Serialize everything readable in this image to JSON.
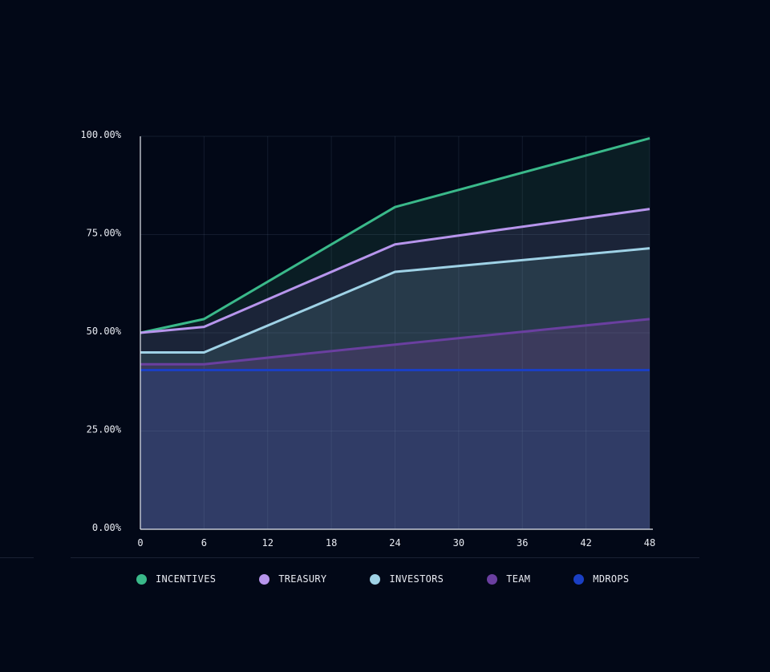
{
  "chart_data": {
    "type": "area",
    "x": [
      0,
      6,
      24,
      48
    ],
    "x_ticks": [
      "0",
      "6",
      "12",
      "18",
      "24",
      "30",
      "36",
      "42",
      "48"
    ],
    "y_ticks": [
      "0.00%",
      "25.00%",
      "50.00%",
      "75.00%",
      "100.00%"
    ],
    "xlim": [
      0,
      48
    ],
    "ylim": [
      0,
      100
    ],
    "grid": true,
    "legend_position": "bottom",
    "series": [
      {
        "name": "INCENTIVES",
        "color": "#3ab98a",
        "fill": "#0a1d24",
        "values": [
          50,
          53.5,
          82,
          99.5
        ]
      },
      {
        "name": "TREASURY",
        "color": "#b795ec",
        "fill": "#1b2438",
        "values": [
          50,
          51.5,
          72.5,
          81.5
        ]
      },
      {
        "name": "INVESTORS",
        "color": "#9fd2e6",
        "fill": "#273a4a",
        "values": [
          45,
          45,
          65.5,
          71.5
        ]
      },
      {
        "name": "TEAM",
        "color": "#6a3fa0",
        "fill": "#3b3a5c",
        "values": [
          42,
          42,
          47,
          53.5
        ]
      },
      {
        "name": "MDROPS",
        "color": "#1a3fc4",
        "fill": "#303c66",
        "values": [
          40.5,
          40.5,
          40.5,
          40.5
        ]
      }
    ]
  }
}
